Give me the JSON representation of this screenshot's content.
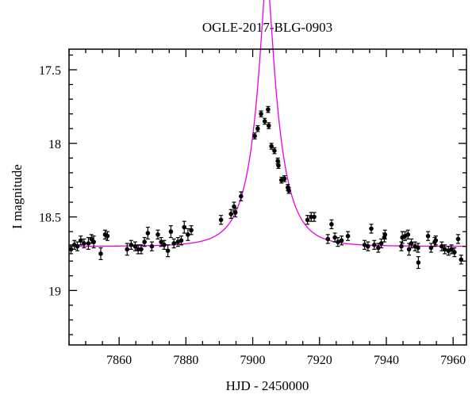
{
  "chart_data": {
    "type": "scatter",
    "title": "OGLE-2017-BLG-0903",
    "xlabel": "HJD - 2450000",
    "ylabel": "I magnitude",
    "xlim": [
      7845,
      7964
    ],
    "ylim": [
      19.37,
      17.36
    ],
    "y_inverted": true,
    "x_ticks": [
      7860,
      7880,
      7900,
      7920,
      7940,
      7960
    ],
    "x_tick_labels": [
      "7860",
      "7880",
      "7900",
      "7920",
      "7940",
      "7960"
    ],
    "y_ticks": [
      17.5,
      18,
      18.5,
      19
    ],
    "y_tick_labels": [
      "17.5",
      "18",
      "18.5",
      "19"
    ],
    "x_minor_step": 5,
    "y_minor_step": 0.1,
    "grid": false,
    "model_color": "#e600e6",
    "model": {
      "t0": 7904.2,
      "tE": 8.0,
      "u0": 0.19,
      "baseline_mag": 18.7
    },
    "series": [
      {
        "type": "scatter",
        "points": [
          [
            7845.6,
            18.72,
            0.03
          ],
          [
            7846.6,
            18.69,
            0.03
          ],
          [
            7847.5,
            18.7,
            0.03
          ],
          [
            7848.5,
            18.66,
            0.03
          ],
          [
            7849.5,
            18.68,
            0.03
          ],
          [
            7850.8,
            18.68,
            0.04
          ],
          [
            7851.7,
            18.65,
            0.03
          ],
          [
            7852.4,
            18.67,
            0.04
          ],
          [
            7854.5,
            18.75,
            0.04
          ],
          [
            7855.8,
            18.62,
            0.03
          ],
          [
            7856.5,
            18.63,
            0.03
          ],
          [
            7862.4,
            18.72,
            0.04
          ],
          [
            7863.6,
            18.69,
            0.03
          ],
          [
            7864.8,
            18.7,
            0.03
          ],
          [
            7865.7,
            18.72,
            0.03
          ],
          [
            7866.6,
            18.72,
            0.03
          ],
          [
            7867.6,
            18.67,
            0.03
          ],
          [
            7868.6,
            18.61,
            0.04
          ],
          [
            7869.8,
            18.7,
            0.03
          ],
          [
            7871.6,
            18.62,
            0.03
          ],
          [
            7872.6,
            18.67,
            0.03
          ],
          [
            7873.5,
            18.69,
            0.03
          ],
          [
            7874.6,
            18.73,
            0.04
          ],
          [
            7875.5,
            18.6,
            0.04
          ],
          [
            7876.4,
            18.68,
            0.03
          ],
          [
            7877.6,
            18.67,
            0.03
          ],
          [
            7878.6,
            18.66,
            0.03
          ],
          [
            7879.5,
            18.57,
            0.04
          ],
          [
            7880.6,
            18.62,
            0.04
          ],
          [
            7881.6,
            18.59,
            0.03
          ],
          [
            7890.5,
            18.52,
            0.03
          ],
          [
            7893.5,
            18.48,
            0.03
          ],
          [
            7894.4,
            18.43,
            0.03
          ],
          [
            7894.8,
            18.47,
            0.03
          ],
          [
            7896.5,
            18.36,
            0.03
          ],
          [
            7900.6,
            17.95,
            0.02
          ],
          [
            7901.5,
            17.9,
            0.02
          ],
          [
            7902.5,
            17.8,
            0.02
          ],
          [
            7903.6,
            17.85,
            0.02
          ],
          [
            7904.6,
            17.77,
            0.02
          ],
          [
            7904.8,
            17.88,
            0.02
          ],
          [
            7905.6,
            18.02,
            0.02
          ],
          [
            7906.5,
            18.05,
            0.02
          ],
          [
            7907.5,
            18.12,
            0.02
          ],
          [
            7907.7,
            18.15,
            0.02
          ],
          [
            7908.6,
            18.25,
            0.02
          ],
          [
            7909.5,
            18.24,
            0.02
          ],
          [
            7910.5,
            18.3,
            0.02
          ],
          [
            7910.8,
            18.32,
            0.02
          ],
          [
            7916.4,
            18.52,
            0.03
          ],
          [
            7917.5,
            18.5,
            0.03
          ],
          [
            7918.4,
            18.5,
            0.03
          ],
          [
            7922.5,
            18.65,
            0.03
          ],
          [
            7923.6,
            18.55,
            0.03
          ],
          [
            7924.6,
            18.64,
            0.03
          ],
          [
            7925.5,
            18.67,
            0.03
          ],
          [
            7926.6,
            18.66,
            0.03
          ],
          [
            7928.5,
            18.63,
            0.03
          ],
          [
            7933.5,
            18.69,
            0.03
          ],
          [
            7934.5,
            18.7,
            0.03
          ],
          [
            7935.5,
            18.58,
            0.03
          ],
          [
            7936.4,
            18.69,
            0.03
          ],
          [
            7937.6,
            18.71,
            0.03
          ],
          [
            7938.5,
            18.68,
            0.03
          ],
          [
            7939.4,
            18.64,
            0.03
          ],
          [
            7939.6,
            18.62,
            0.03
          ],
          [
            7944.5,
            18.7,
            0.03
          ],
          [
            7944.8,
            18.64,
            0.04
          ],
          [
            7945.6,
            18.63,
            0.03
          ],
          [
            7946.5,
            18.62,
            0.03
          ],
          [
            7946.8,
            18.72,
            0.04
          ],
          [
            7947.5,
            18.68,
            0.03
          ],
          [
            7948.6,
            18.7,
            0.03
          ],
          [
            7949.5,
            18.71,
            0.03
          ],
          [
            7949.6,
            18.81,
            0.04
          ],
          [
            7952.5,
            18.63,
            0.03
          ],
          [
            7953.4,
            18.71,
            0.03
          ],
          [
            7954.5,
            18.67,
            0.03
          ],
          [
            7954.8,
            18.66,
            0.03
          ],
          [
            7956.6,
            18.7,
            0.03
          ],
          [
            7957.5,
            18.72,
            0.03
          ],
          [
            7958.6,
            18.73,
            0.03
          ],
          [
            7959.5,
            18.72,
            0.03
          ],
          [
            7960.4,
            18.74,
            0.03
          ],
          [
            7961.5,
            18.65,
            0.03
          ],
          [
            7962.4,
            18.79,
            0.03
          ]
        ]
      }
    ]
  }
}
